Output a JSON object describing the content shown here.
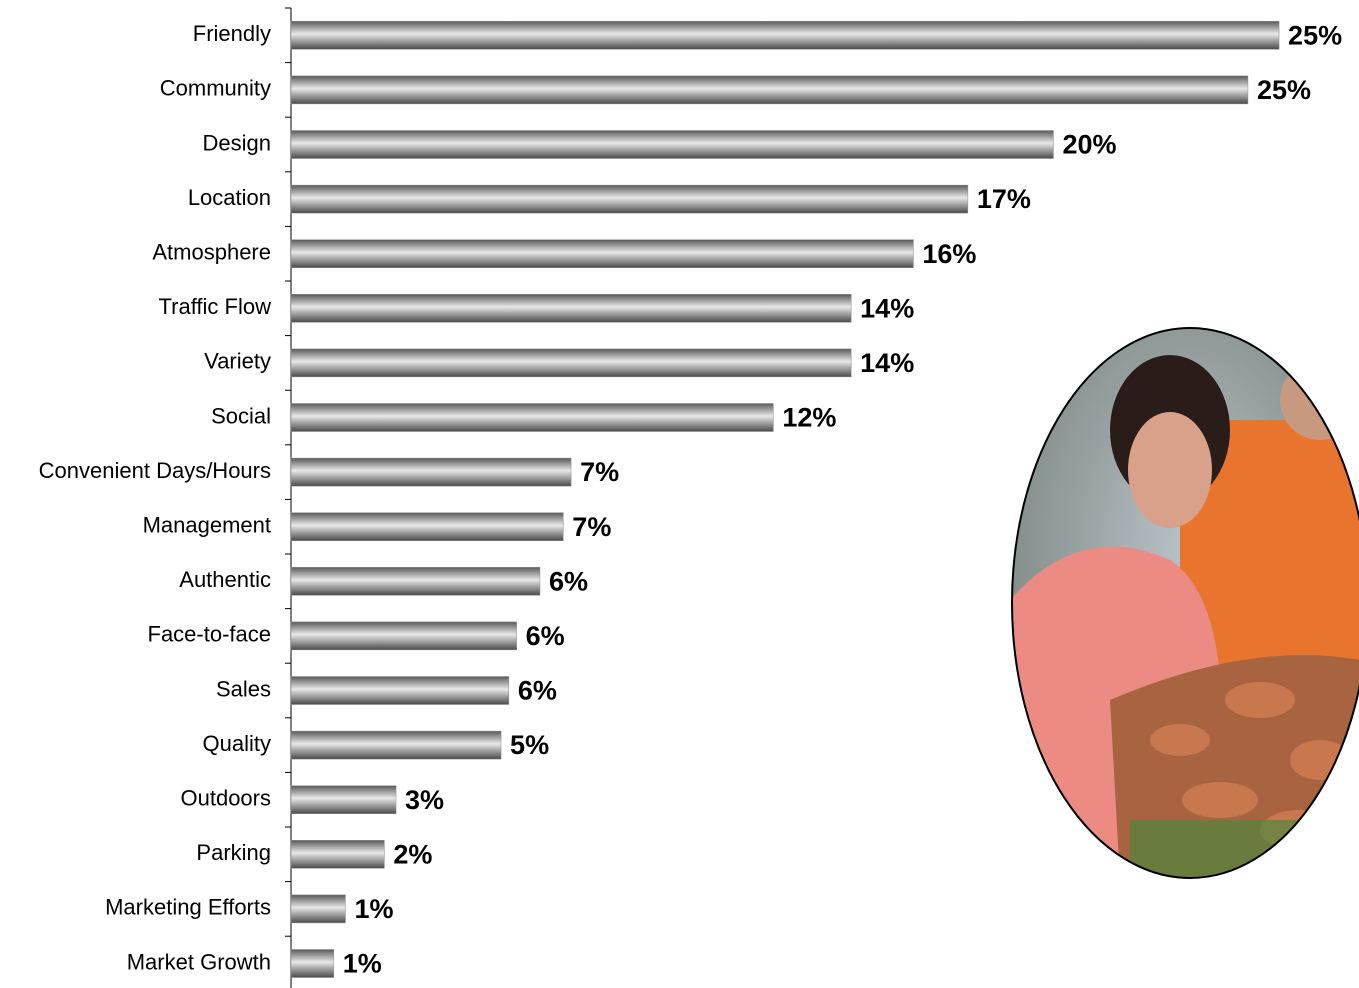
{
  "chart_data": {
    "type": "bar",
    "orientation": "horizontal",
    "categories": [
      "Friendly",
      "Community",
      "Design",
      "Location",
      "Atmosphere",
      "Traffic Flow",
      "Variety",
      "Social",
      "Convenient Days/Hours",
      "Management",
      "Authentic",
      "Face-to-face",
      "Sales",
      "Quality",
      "Outdoors",
      "Parking",
      "Marketing Efforts",
      "Market Growth"
    ],
    "values": [
      25.4,
      24.6,
      19.6,
      17.4,
      16.0,
      14.4,
      14.4,
      12.4,
      7.2,
      7.0,
      6.4,
      5.8,
      5.6,
      5.4,
      2.7,
      2.4,
      1.4,
      1.1
    ],
    "value_labels": [
      "25%",
      "25%",
      "20%",
      "17%",
      "16%",
      "14%",
      "14%",
      "12%",
      "7%",
      "7%",
      "6%",
      "6%",
      "6%",
      "5%",
      "3%",
      "2%",
      "1%",
      "1%"
    ],
    "color": "#8c8c8c",
    "xlim": [
      0,
      27
    ]
  }
}
